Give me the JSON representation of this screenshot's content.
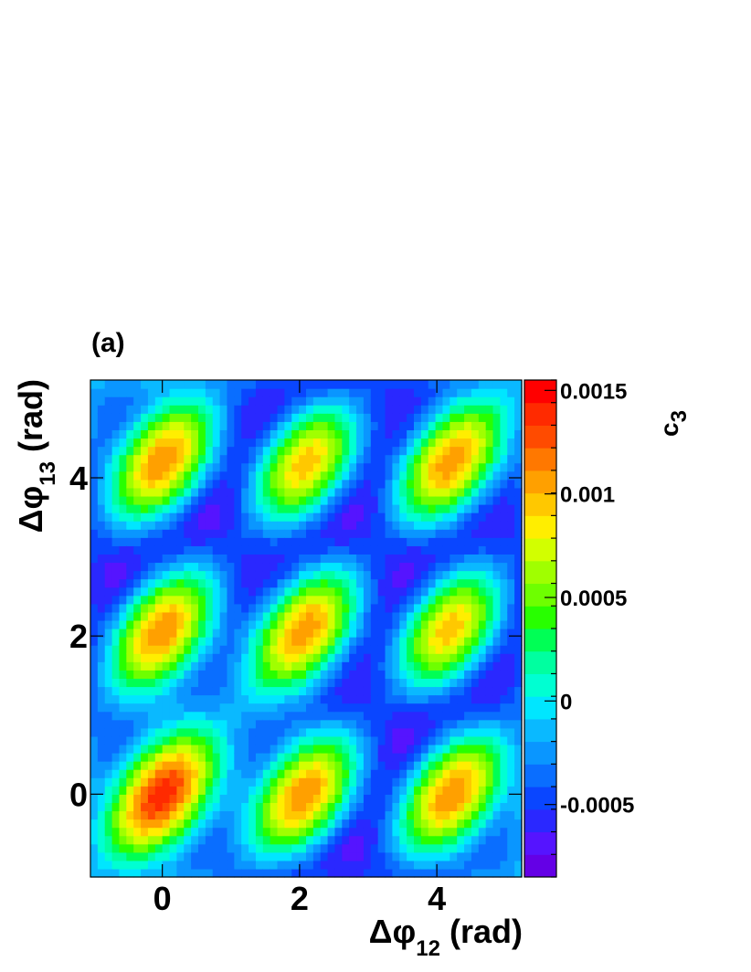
{
  "chart_data": {
    "type": "heatmap",
    "panel_label": "(a)",
    "xlabel": {
      "symbol": "Δφ",
      "subscript": "12",
      "unit": "(rad)"
    },
    "ylabel": {
      "symbol": "Δφ",
      "subscript": "13",
      "unit": "(rad)"
    },
    "zlabel": {
      "symbol": "c",
      "subscript": "3"
    },
    "xlim": [
      -1.047,
      5.236
    ],
    "ylim": [
      -1.047,
      5.236
    ],
    "zlim": [
      -0.00085,
      0.00155
    ],
    "x_ticks": [
      {
        "value": 0,
        "label": "0"
      },
      {
        "value": 2,
        "label": "2"
      },
      {
        "value": 4,
        "label": "4"
      }
    ],
    "y_ticks": [
      {
        "value": 0,
        "label": "0"
      },
      {
        "value": 2,
        "label": "2"
      },
      {
        "value": 4,
        "label": "4"
      }
    ],
    "z_ticks": [
      {
        "value": 0.0015,
        "label": "0.0015"
      },
      {
        "value": 0.001,
        "label": "0.001"
      },
      {
        "value": 0.0005,
        "label": "0.0005"
      },
      {
        "value": 0,
        "label": "0"
      },
      {
        "value": -0.0005,
        "label": "-0.0005"
      }
    ],
    "grid": false,
    "bins": 60,
    "function": "A*(cos(3x)+cos(3y)+cos(3(x-y))) + B*(cos(x)+cos(y)+cos(x-y))",
    "coefficients": {
      "A": 0.00037,
      "B": 0.0001
    },
    "colors": [
      "#6400e6",
      "#5514ff",
      "#2a28ff",
      "#0a46ff",
      "#0a6eff",
      "#0a96ff",
      "#0ab9ff",
      "#00e6ff",
      "#00ffd2",
      "#00ffa0",
      "#00ff55",
      "#28ff00",
      "#6eff00",
      "#a0ff00",
      "#d2ff00",
      "#ffee00",
      "#ffc800",
      "#ffa000",
      "#ff7800",
      "#ff4b00",
      "#ff2a00",
      "#ff0000"
    ]
  }
}
